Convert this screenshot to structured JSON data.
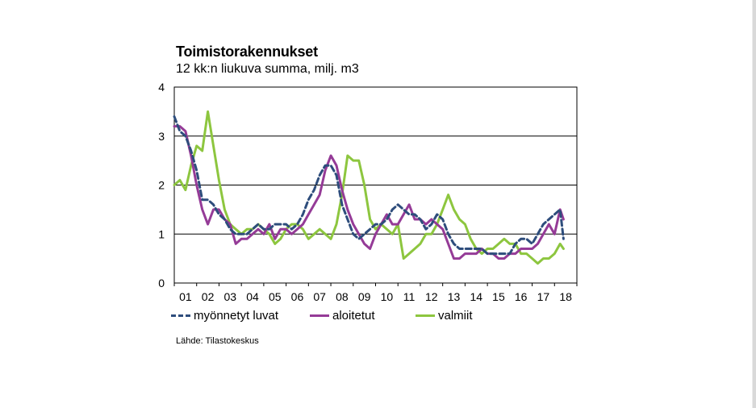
{
  "chart_data": {
    "type": "line",
    "title": "Toimistorakennukset",
    "subtitle": "12 kk:n liukuva summa, milj. m3",
    "xlabel": "",
    "ylabel": "",
    "ylim": [
      0,
      4
    ],
    "yticks": [
      "0",
      "1",
      "2",
      "3",
      "4"
    ],
    "xlim": [
      2001.0,
      2019.0
    ],
    "xticks": [
      "01",
      "02",
      "03",
      "04",
      "05",
      "06",
      "07",
      "08",
      "09",
      "10",
      "11",
      "12",
      "13",
      "14",
      "15",
      "16",
      "17",
      "18"
    ],
    "grid": "horizontal",
    "legend_position": "bottom",
    "series": [
      {
        "name": "myönnetyt luvat",
        "color": "#2e4d7c",
        "style": "dashed",
        "x": [
          2001.0,
          2001.25,
          2001.5,
          2001.75,
          2002.0,
          2002.25,
          2002.5,
          2002.75,
          2003.0,
          2003.25,
          2003.5,
          2003.75,
          2004.0,
          2004.25,
          2004.5,
          2004.75,
          2005.0,
          2005.25,
          2005.5,
          2005.75,
          2006.0,
          2006.25,
          2006.5,
          2006.75,
          2007.0,
          2007.25,
          2007.5,
          2007.75,
          2008.0,
          2008.25,
          2008.5,
          2008.75,
          2009.0,
          2009.25,
          2009.5,
          2009.75,
          2010.0,
          2010.25,
          2010.5,
          2010.75,
          2011.0,
          2011.25,
          2011.5,
          2011.75,
          2012.0,
          2012.25,
          2012.5,
          2012.75,
          2013.0,
          2013.25,
          2013.5,
          2013.75,
          2014.0,
          2014.25,
          2014.5,
          2014.75,
          2015.0,
          2015.25,
          2015.5,
          2015.75,
          2016.0,
          2016.25,
          2016.5,
          2016.75,
          2017.0,
          2017.25,
          2017.5,
          2017.75,
          2018.0,
          2018.25,
          2018.4
        ],
        "y": [
          3.4,
          3.1,
          3.0,
          2.7,
          2.3,
          1.7,
          1.7,
          1.6,
          1.4,
          1.3,
          1.1,
          1.0,
          1.0,
          1.0,
          1.1,
          1.2,
          1.1,
          1.1,
          1.2,
          1.2,
          1.2,
          1.1,
          1.2,
          1.4,
          1.7,
          1.9,
          2.2,
          2.4,
          2.4,
          2.2,
          1.6,
          1.3,
          1.0,
          0.9,
          1.0,
          1.1,
          1.2,
          1.2,
          1.3,
          1.5,
          1.6,
          1.5,
          1.4,
          1.4,
          1.3,
          1.1,
          1.2,
          1.4,
          1.3,
          1.0,
          0.8,
          0.7,
          0.7,
          0.7,
          0.7,
          0.7,
          0.6,
          0.6,
          0.6,
          0.6,
          0.6,
          0.8,
          0.9,
          0.9,
          0.8,
          1.0,
          1.2,
          1.3,
          1.4,
          1.5,
          0.9
        ]
      },
      {
        "name": "aloitetut",
        "color": "#953b97",
        "style": "solid",
        "x": [
          2001.0,
          2001.25,
          2001.5,
          2001.75,
          2002.0,
          2002.25,
          2002.5,
          2002.75,
          2003.0,
          2003.25,
          2003.5,
          2003.75,
          2004.0,
          2004.25,
          2004.5,
          2004.75,
          2005.0,
          2005.25,
          2005.5,
          2005.75,
          2006.0,
          2006.25,
          2006.5,
          2006.75,
          2007.0,
          2007.25,
          2007.5,
          2007.75,
          2008.0,
          2008.25,
          2008.5,
          2008.75,
          2009.0,
          2009.25,
          2009.5,
          2009.75,
          2010.0,
          2010.25,
          2010.5,
          2010.75,
          2011.0,
          2011.25,
          2011.5,
          2011.75,
          2012.0,
          2012.25,
          2012.5,
          2012.75,
          2013.0,
          2013.25,
          2013.5,
          2013.75,
          2014.0,
          2014.25,
          2014.5,
          2014.75,
          2015.0,
          2015.25,
          2015.5,
          2015.75,
          2016.0,
          2016.25,
          2016.5,
          2016.75,
          2017.0,
          2017.25,
          2017.5,
          2017.75,
          2018.0,
          2018.25,
          2018.4
        ],
        "y": [
          3.2,
          3.2,
          3.1,
          2.6,
          2.0,
          1.5,
          1.2,
          1.5,
          1.5,
          1.3,
          1.2,
          0.8,
          0.9,
          0.9,
          1.0,
          1.1,
          1.0,
          1.2,
          0.9,
          1.1,
          1.1,
          1.0,
          1.1,
          1.2,
          1.4,
          1.6,
          1.8,
          2.3,
          2.6,
          2.4,
          1.9,
          1.5,
          1.2,
          1.0,
          0.8,
          0.7,
          1.0,
          1.2,
          1.4,
          1.2,
          1.2,
          1.4,
          1.6,
          1.3,
          1.3,
          1.2,
          1.3,
          1.2,
          1.1,
          0.8,
          0.5,
          0.5,
          0.6,
          0.6,
          0.6,
          0.7,
          0.6,
          0.6,
          0.5,
          0.5,
          0.6,
          0.6,
          0.7,
          0.7,
          0.7,
          0.8,
          1.0,
          1.2,
          1.0,
          1.5,
          1.3
        ]
      },
      {
        "name": "valmiit",
        "color": "#8dc63f",
        "style": "solid",
        "x": [
          2001.0,
          2001.25,
          2001.5,
          2001.75,
          2002.0,
          2002.25,
          2002.5,
          2002.75,
          2003.0,
          2003.25,
          2003.5,
          2003.75,
          2004.0,
          2004.25,
          2004.5,
          2004.75,
          2005.0,
          2005.25,
          2005.5,
          2005.75,
          2006.0,
          2006.25,
          2006.5,
          2006.75,
          2007.0,
          2007.25,
          2007.5,
          2007.75,
          2008.0,
          2008.25,
          2008.5,
          2008.75,
          2009.0,
          2009.25,
          2009.5,
          2009.75,
          2010.0,
          2010.25,
          2010.5,
          2010.75,
          2011.0,
          2011.25,
          2011.5,
          2011.75,
          2012.0,
          2012.25,
          2012.5,
          2012.75,
          2013.0,
          2013.25,
          2013.5,
          2013.75,
          2014.0,
          2014.25,
          2014.5,
          2014.75,
          2015.0,
          2015.25,
          2015.5,
          2015.75,
          2016.0,
          2016.25,
          2016.5,
          2016.75,
          2017.0,
          2017.25,
          2017.5,
          2017.75,
          2018.0,
          2018.25,
          2018.4
        ],
        "y": [
          2.0,
          2.1,
          1.9,
          2.4,
          2.8,
          2.7,
          3.5,
          2.8,
          2.1,
          1.5,
          1.2,
          1.1,
          1.0,
          1.1,
          1.1,
          1.2,
          1.1,
          1.0,
          0.8,
          0.9,
          1.1,
          1.2,
          1.2,
          1.1,
          0.9,
          1.0,
          1.1,
          1.0,
          0.9,
          1.2,
          1.8,
          2.6,
          2.5,
          2.5,
          2.0,
          1.3,
          1.1,
          1.2,
          1.1,
          1.0,
          1.2,
          0.5,
          0.6,
          0.7,
          0.8,
          1.0,
          1.0,
          1.2,
          1.5,
          1.8,
          1.5,
          1.3,
          1.2,
          0.9,
          0.7,
          0.6,
          0.7,
          0.7,
          0.8,
          0.9,
          0.8,
          0.8,
          0.6,
          0.6,
          0.5,
          0.4,
          0.5,
          0.5,
          0.6,
          0.8,
          0.7
        ]
      }
    ],
    "source": "Lähde: Tilastokeskus"
  }
}
